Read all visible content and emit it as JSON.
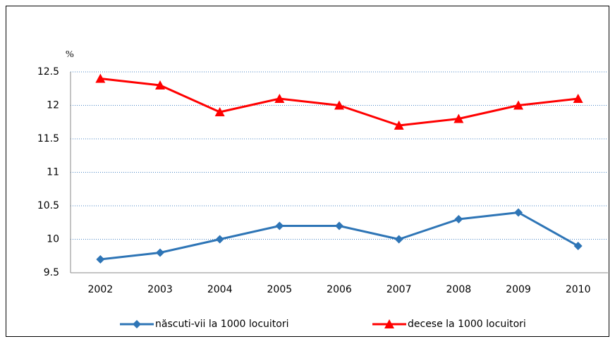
{
  "chart_data": {
    "type": "line",
    "y_label": "%",
    "categories": [
      "2002",
      "2003",
      "2004",
      "2005",
      "2006",
      "2007",
      "2008",
      "2009",
      "2010"
    ],
    "series": [
      {
        "name": "născuti-vii la 1000 locuitori",
        "color": "#2e75b6",
        "marker": "diamond",
        "values": [
          9.7,
          9.8,
          10.0,
          10.2,
          10.2,
          10.0,
          10.3,
          10.4,
          9.9
        ]
      },
      {
        "name": "decese la 1000 locuitori",
        "color": "#ff0000",
        "marker": "triangle",
        "values": [
          12.4,
          12.3,
          11.9,
          12.1,
          12.0,
          11.7,
          11.8,
          12.0,
          12.1
        ]
      }
    ],
    "ylim": [
      9.5,
      12.5
    ],
    "yticks": [
      9.5,
      10,
      10.5,
      11,
      11.5,
      12,
      12.5
    ],
    "grid": true
  }
}
